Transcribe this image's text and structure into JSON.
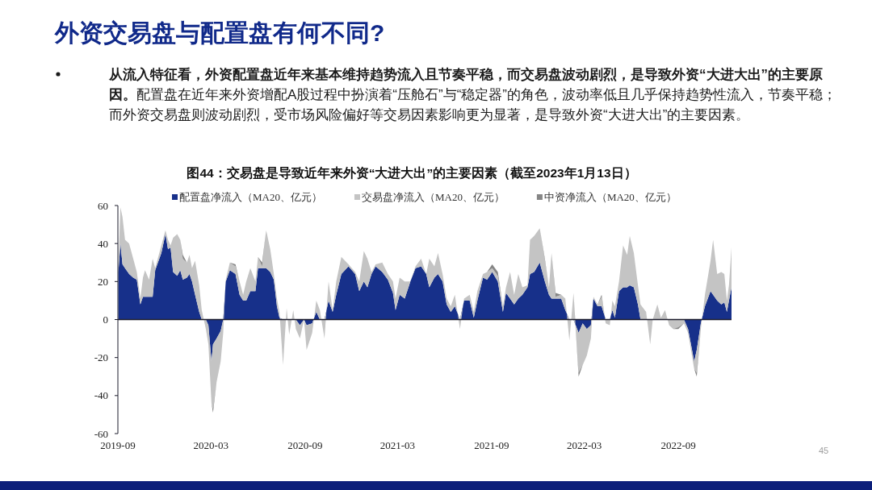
{
  "chart_data": {
    "type": "area",
    "title": "外资交易盘与配置盘有何不同?",
    "subtitle": "图44：交易盘是导致近年来外资“大进大出”的主要因素（截至2023年1月13日）",
    "stacked": true,
    "legend": "top",
    "xlim": [
      "2019-09-01",
      "2022-12-14"
    ],
    "xticks": [
      "2019-09",
      "2020-03",
      "2020-09",
      "2021-03",
      "2021-09",
      "2022-03",
      "2022-09"
    ],
    "ylim": [
      -60,
      60
    ],
    "yticks": [
      -60,
      -40,
      -20,
      0,
      20,
      40,
      60
    ],
    "x": [
      "2019-09-02",
      "2019-09-06",
      "2019-09-10",
      "2019-09-15",
      "2019-09-23",
      "2019-10-01",
      "2019-10-08",
      "2019-10-15",
      "2019-10-20",
      "2019-10-24",
      "2019-11-01",
      "2019-11-08",
      "2019-11-13",
      "2019-11-25",
      "2019-12-03",
      "2019-12-08",
      "2019-12-13",
      "2019-12-18",
      "2019-12-26",
      "2020-01-01",
      "2020-01-06",
      "2020-01-14",
      "2020-01-19",
      "2020-01-24",
      "2020-01-30",
      "2020-02-07",
      "2020-02-12",
      "2020-02-20",
      "2020-02-25",
      "2020-03-02",
      "2020-03-05",
      "2020-03-12",
      "2020-03-20",
      "2020-03-25",
      "2020-03-30",
      "2020-04-07",
      "2020-04-18",
      "2020-04-26",
      "2020-05-03",
      "2020-05-09",
      "2020-05-17",
      "2020-05-27",
      "2020-06-01",
      "2020-06-09",
      "2020-06-17",
      "2020-06-25",
      "2020-07-02",
      "2020-07-08",
      "2020-07-13",
      "2020-07-20",
      "2020-07-27",
      "2020-08-01",
      "2020-08-09",
      "2020-08-14",
      "2020-08-22",
      "2020-08-30",
      "2020-09-04",
      "2020-09-15",
      "2020-09-23",
      "2020-09-30",
      "2020-10-09",
      "2020-10-17",
      "2020-10-25",
      "2020-11-01",
      "2020-11-11",
      "2020-11-25",
      "2020-12-08",
      "2020-12-16",
      "2020-12-25",
      "2021-01-01",
      "2021-01-09",
      "2021-01-17",
      "2021-01-30",
      "2021-02-10",
      "2021-02-20",
      "2021-02-25",
      "2021-03-05",
      "2021-03-15",
      "2021-03-26",
      "2021-04-05",
      "2021-04-16",
      "2021-04-26",
      "2021-05-02",
      "2021-05-12",
      "2021-05-19",
      "2021-05-28",
      "2021-06-05",
      "2021-06-13",
      "2021-06-21",
      "2021-07-01",
      "2021-07-09",
      "2021-07-20",
      "2021-07-28",
      "2021-08-04",
      "2021-08-15",
      "2021-08-23",
      "2021-09-02",
      "2021-09-13",
      "2021-09-23",
      "2021-09-29",
      "2021-10-07",
      "2021-10-15",
      "2021-10-23",
      "2021-10-31",
      "2021-11-10",
      "2021-11-15",
      "2021-11-23",
      "2021-12-04",
      "2021-12-14",
      "2021-12-22",
      "2021-12-27",
      "2022-01-04",
      "2022-01-15",
      "2022-01-23",
      "2022-01-31",
      "2022-02-08",
      "2022-02-18",
      "2022-02-26",
      "2022-03-06",
      "2022-03-14",
      "2022-03-19",
      "2022-03-27",
      "2022-04-04",
      "2022-04-12",
      "2022-04-20",
      "2022-04-25",
      "2022-04-30",
      "2022-05-08",
      "2022-05-16",
      "2022-05-24",
      "2022-05-29",
      "2022-06-06",
      "2022-06-14",
      "2022-06-19",
      "2022-06-30",
      "2022-07-08",
      "2022-07-13",
      "2022-07-22",
      "2022-07-29",
      "2022-08-06",
      "2022-08-14",
      "2022-08-22",
      "2022-09-01",
      "2022-09-12",
      "2022-09-20",
      "2022-10-02",
      "2022-10-07",
      "2022-10-15",
      "2022-10-23",
      "2022-11-03",
      "2022-11-08",
      "2022-11-16",
      "2022-11-24",
      "2022-11-30",
      "2022-12-05",
      "2022-12-09",
      "2022-12-14"
    ],
    "series": [
      {
        "name": "配置盘净流入（MA20、亿元）",
        "color": "#17308a",
        "values": [
          25,
          40,
          29,
          27,
          24,
          22,
          21,
          8,
          12,
          12,
          12,
          12,
          26,
          35,
          45,
          37,
          38,
          25,
          23,
          26,
          21,
          22,
          24,
          20,
          13,
          4,
          0,
          0,
          -3,
          -22,
          -13,
          -10,
          -6,
          0,
          20,
          26,
          24,
          13,
          10,
          10,
          15,
          15,
          27,
          27,
          27,
          25,
          21,
          7,
          1,
          0,
          0,
          0,
          0,
          0,
          -3,
          0,
          -3,
          -2,
          4,
          0,
          0,
          10,
          4,
          13,
          24,
          28,
          24,
          15,
          20,
          17,
          24,
          28,
          25,
          21,
          14,
          5,
          13,
          11,
          20,
          27,
          28,
          24,
          17,
          22,
          24,
          20,
          8,
          4,
          7,
          0,
          10,
          10,
          1,
          10,
          22,
          21,
          25,
          20,
          4,
          14,
          11,
          8,
          11,
          13,
          17,
          24,
          25,
          30,
          20,
          13,
          11,
          11,
          11,
          5,
          0,
          0,
          -7,
          -2,
          -5,
          -3,
          11,
          7,
          7,
          0,
          0,
          5,
          1,
          15,
          17,
          17,
          18,
          17,
          8,
          0,
          0,
          0,
          0,
          0,
          0,
          0,
          0,
          0,
          0,
          0,
          -5,
          -22,
          -16,
          -2,
          7,
          15,
          13,
          10,
          8,
          9,
          4,
          10,
          17
        ]
      },
      {
        "name": "交易盘净流入（MA20、亿元）",
        "color": "#c4c4c4",
        "values": [
          5,
          19,
          25,
          15,
          16,
          10,
          4,
          3,
          10,
          14,
          9,
          20,
          1,
          4,
          2,
          5,
          1,
          18,
          22,
          16,
          11,
          8,
          10,
          7,
          18,
          14,
          5,
          -5,
          -10,
          -22,
          -34,
          -23,
          -16,
          -7,
          1,
          4,
          4,
          7,
          3,
          10,
          12,
          5,
          6,
          1,
          20,
          12,
          3,
          4,
          3,
          -24,
          6,
          -8,
          5,
          -5,
          -7,
          0,
          -13,
          -5,
          6,
          5,
          -10,
          10,
          1,
          7,
          9,
          1,
          1,
          5,
          16,
          15,
          1,
          1,
          5,
          3,
          6,
          6,
          9,
          9,
          0,
          1,
          4,
          0,
          15,
          6,
          11,
          4,
          3,
          3,
          6,
          -5,
          1,
          3,
          3,
          5,
          2,
          4,
          2,
          3,
          3,
          3,
          14,
          5,
          13,
          4,
          1,
          18,
          19,
          18,
          11,
          4,
          24,
          1,
          2,
          6,
          -11,
          14,
          -21,
          -22,
          -14,
          -7,
          1,
          1,
          5,
          -2,
          -3,
          5,
          6,
          5,
          22,
          17,
          26,
          18,
          10,
          8,
          4,
          -13,
          0,
          8,
          1,
          5,
          -3,
          -5,
          -4,
          -2,
          -2,
          -4,
          -12,
          -3,
          6,
          16,
          29,
          14,
          17,
          15,
          6,
          8,
          21
        ]
      },
      {
        "name": "中资净流入（MA20、亿元）",
        "color": "#868686",
        "values": [
          0,
          0,
          0,
          0,
          0,
          0,
          0,
          0,
          0,
          0,
          0,
          0,
          0,
          0,
          0,
          0,
          0,
          0,
          0,
          0,
          2,
          0,
          0,
          0,
          0,
          0,
          0,
          0,
          0,
          0,
          -2,
          0,
          0,
          0,
          0,
          0,
          1,
          0,
          0,
          0,
          0,
          0,
          0,
          2,
          0,
          0,
          0,
          0,
          0,
          0,
          0,
          0,
          0,
          0,
          0,
          0,
          0,
          0,
          0,
          0,
          0,
          0,
          0,
          0,
          0,
          0,
          0,
          0,
          0,
          0,
          0,
          0,
          0,
          0,
          0,
          0,
          0,
          0,
          0,
          0,
          0,
          0,
          0,
          0,
          0,
          0,
          0,
          0,
          0,
          0,
          0,
          0,
          0,
          0,
          0,
          0,
          2,
          2,
          0,
          0,
          0,
          0,
          0,
          0,
          0,
          0,
          0,
          0,
          1,
          0,
          0,
          2,
          0,
          0,
          0,
          0,
          -2,
          0,
          0,
          0,
          0,
          0,
          1,
          0,
          0,
          0,
          0,
          0,
          0,
          0,
          0,
          0,
          0,
          0,
          0,
          0,
          0,
          0,
          0,
          0,
          0,
          0,
          -1,
          0,
          0,
          0,
          -2,
          0,
          0,
          0,
          0,
          0,
          0,
          0,
          0,
          0,
          0
        ]
      }
    ],
    "annotations": [
      "**从流入特征看，外资配置盘近年来基本维持趋势流入且节奏平稳，而交易盘波动剧烈，是导致外资“大进大出”的主要原因。**配置盘在近年来外资增配A股过程中扮演着“压舱石”与“稳定器”的角色，波动率低且几乎保持趋势性流入，节奏平稳；而外资交易盘则波动剧烈，受市场风险偏好等交易因素影响更为显著，是导致外资“大进大出”的主要因素。",
      "45"
    ]
  }
}
